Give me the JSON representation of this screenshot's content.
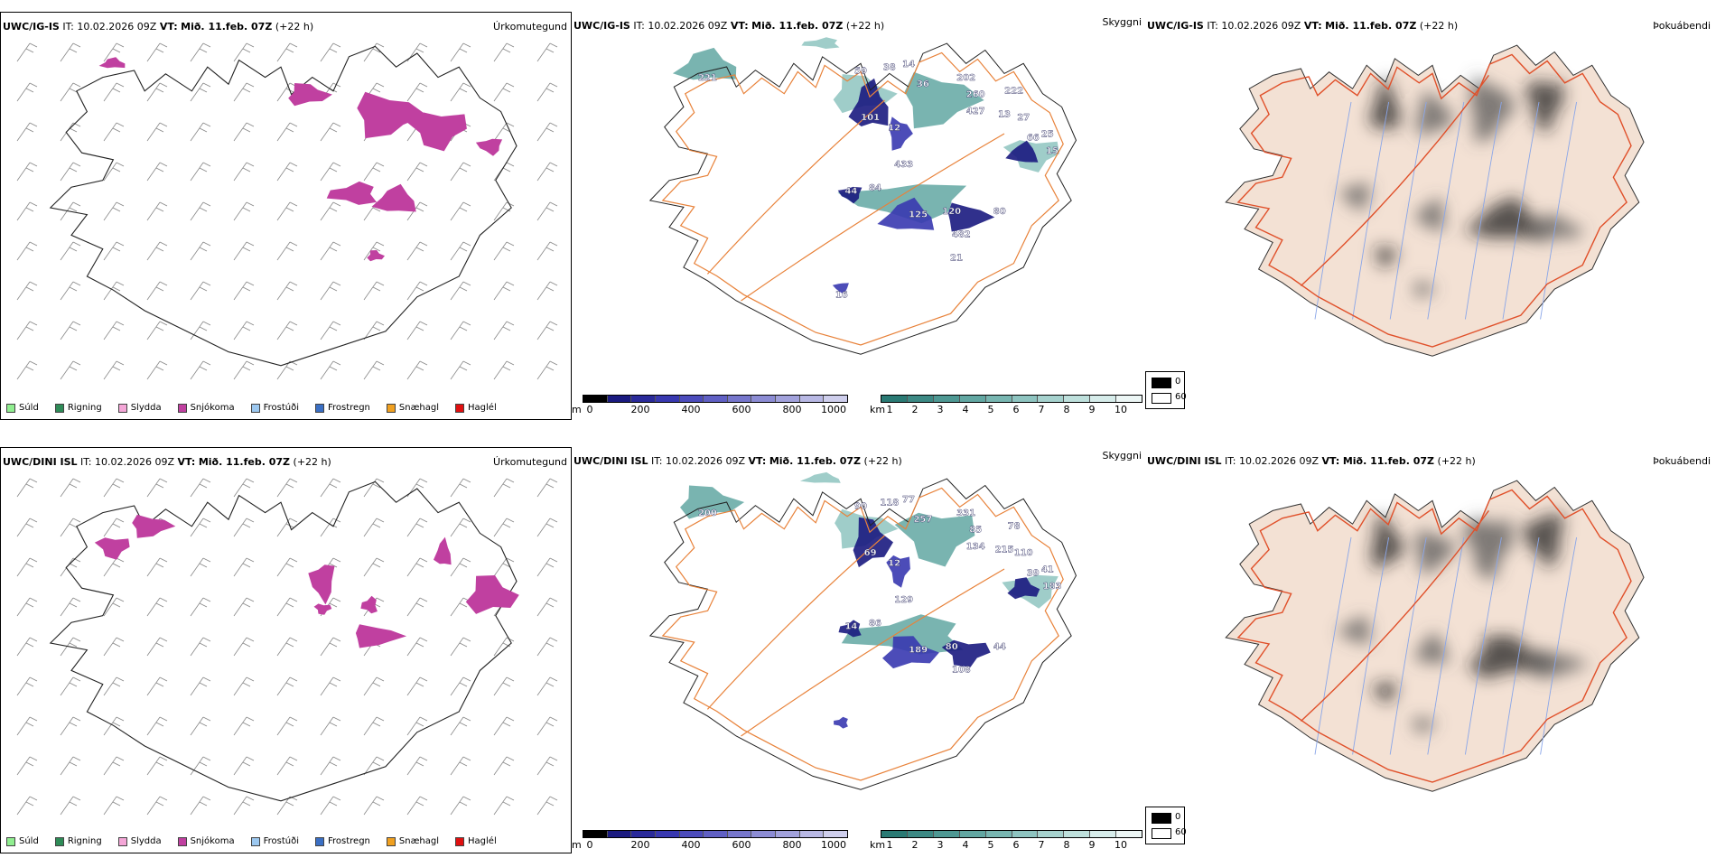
{
  "rows": [
    {
      "model_label": "UWC/IG-IS",
      "issue_time": "IT: 10.02.2026 09Z",
      "valid_prefix": "VT:",
      "valid_time": "Mið. 11.feb. 07Z",
      "lead_time": "(+22 h)",
      "cloud_labels": [
        "221",
        "59",
        "38",
        "14",
        "36",
        "202",
        "260",
        "427",
        "13",
        "222",
        "27",
        "66",
        "25",
        "15",
        "101",
        "12",
        "433",
        "84",
        "125",
        "120",
        "80",
        "482",
        "44",
        "16",
        "21"
      ]
    },
    {
      "model_label": "UWC/DINI ISL",
      "issue_time": "IT: 10.02.2026 09Z",
      "valid_prefix": "VT:",
      "valid_time": "Mið. 11.feb. 07Z",
      "lead_time": "(+22 h)",
      "cloud_labels": [
        "200",
        "90",
        "118",
        "77",
        "257",
        "331",
        "85",
        "134",
        "215",
        "78",
        "110",
        "39",
        "41",
        "183",
        "69",
        "12",
        "129",
        "86",
        "189",
        "80",
        "44",
        "108",
        "14"
      ]
    }
  ],
  "panel_types": {
    "precip": "Úrkomutegund",
    "cloud": "Skyggni",
    "fog": "Þokuábendi"
  },
  "precip_legend": [
    {
      "label": "Súld",
      "color": "#90ee90"
    },
    {
      "label": "Rigning",
      "color": "#2e8b57"
    },
    {
      "label": "Slydda",
      "color": "#f4a6d7"
    },
    {
      "label": "Snjókoma",
      "color": "#c040a0"
    },
    {
      "label": "Frostúði",
      "color": "#9cc8f0"
    },
    {
      "label": "Frostregn",
      "color": "#3a6fc4"
    },
    {
      "label": "Snæhagl",
      "color": "#f0a020"
    },
    {
      "label": "Haglél",
      "color": "#e01010"
    }
  ],
  "cloudbase_scale": {
    "unit": "m",
    "ticks": [
      "0",
      "200",
      "400",
      "600",
      "800",
      "1000"
    ],
    "colors": [
      "#000000",
      "#1a1a80",
      "#2a2a9a",
      "#3838b0",
      "#4c4cbc",
      "#6060c4",
      "#7676cc",
      "#8c8cd4",
      "#a2a2dc",
      "#b8b8e4",
      "#ceceec"
    ]
  },
  "visibility_scale": {
    "unit": "km",
    "ticks": [
      "1",
      "2",
      "3",
      "4",
      "5",
      "6",
      "7",
      "8",
      "9",
      "10"
    ],
    "colors": [
      "#2a7a74",
      "#3c8984",
      "#4e9893",
      "#62a7a2",
      "#78b6b1",
      "#8ec4c0",
      "#a6d2ce",
      "#bee0dc",
      "#d6ecea",
      "#ecf6f5"
    ]
  },
  "fog_legend": [
    {
      "label": "0",
      "color": "#000000"
    },
    {
      "label": "60",
      "color": "#ffffff"
    }
  ],
  "colors": {
    "snow": "#c040a0",
    "coast": "#222222",
    "roads": "#e8823a",
    "land_fog": "#f3e1d4",
    "fog_roads": "#e0502a",
    "rivers": "#8aa6e8"
  }
}
